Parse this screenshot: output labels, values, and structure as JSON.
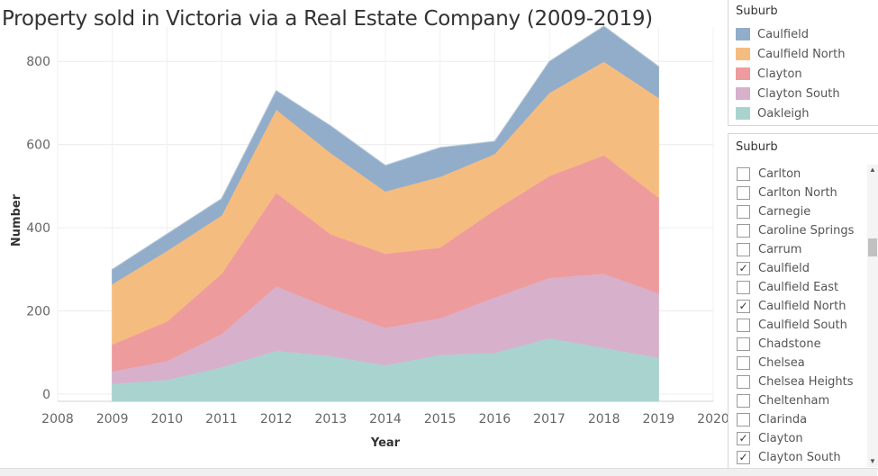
{
  "chart_data": {
    "type": "area",
    "stacked": true,
    "title": "Property sold in Victoria via a Real Estate Company (2009-2019)",
    "xlabel": "Year",
    "ylabel": "Number",
    "x_ticks": [
      "2008",
      "2009",
      "2010",
      "2011",
      "2012",
      "2013",
      "2014",
      "2015",
      "2016",
      "2017",
      "2018",
      "2019",
      "2020"
    ],
    "y_ticks": [
      "0",
      "200",
      "400",
      "600",
      "800"
    ],
    "xlim": [
      2008,
      2020
    ],
    "ylim": [
      0,
      900
    ],
    "grid": true,
    "x": [
      2009,
      2010,
      2011,
      2012,
      2013,
      2014,
      2015,
      2016,
      2017,
      2018,
      2019
    ],
    "series": [
      {
        "name": "Oakleigh",
        "color": "#a9d3cf",
        "values": [
          25,
          35,
          65,
          105,
          92,
          70,
          95,
          100,
          135,
          112,
          88
        ]
      },
      {
        "name": "Clayton South",
        "color": "#d7b0cc",
        "values": [
          30,
          45,
          80,
          155,
          115,
          90,
          88,
          133,
          145,
          178,
          155
        ]
      },
      {
        "name": "Clayton",
        "color": "#ee9b9d",
        "values": [
          65,
          95,
          145,
          225,
          178,
          178,
          170,
          210,
          245,
          285,
          230
        ]
      },
      {
        "name": "Caulfield North",
        "color": "#f5bc80",
        "values": [
          145,
          170,
          140,
          200,
          195,
          150,
          170,
          135,
          200,
          225,
          240
        ]
      },
      {
        "name": "Caulfield",
        "color": "#92adc9",
        "values": [
          35,
          40,
          40,
          45,
          65,
          62,
          70,
          30,
          75,
          85,
          75
        ]
      }
    ]
  },
  "legend": {
    "title": "Suburb",
    "items": [
      {
        "label": "Caulfield",
        "color": "#92adc9"
      },
      {
        "label": "Caulfield North",
        "color": "#f5bc80"
      },
      {
        "label": "Clayton",
        "color": "#ee9b9d"
      },
      {
        "label": "Clayton South",
        "color": "#d7b0cc"
      },
      {
        "label": "Oakleigh",
        "color": "#a9d3cf"
      }
    ]
  },
  "filter": {
    "title": "Suburb",
    "items": [
      {
        "label": "Carlton",
        "checked": false
      },
      {
        "label": "Carlton North",
        "checked": false
      },
      {
        "label": "Carnegie",
        "checked": false
      },
      {
        "label": "Caroline Springs",
        "checked": false
      },
      {
        "label": "Carrum",
        "checked": false
      },
      {
        "label": "Caulfield",
        "checked": true
      },
      {
        "label": "Caulfield East",
        "checked": false
      },
      {
        "label": "Caulfield North",
        "checked": true
      },
      {
        "label": "Caulfield South",
        "checked": false
      },
      {
        "label": "Chadstone",
        "checked": false
      },
      {
        "label": "Chelsea",
        "checked": false
      },
      {
        "label": "Chelsea Heights",
        "checked": false
      },
      {
        "label": "Cheltenham",
        "checked": false
      },
      {
        "label": "Clarinda",
        "checked": false
      },
      {
        "label": "Clayton",
        "checked": true
      },
      {
        "label": "Clayton South",
        "checked": true
      }
    ]
  }
}
